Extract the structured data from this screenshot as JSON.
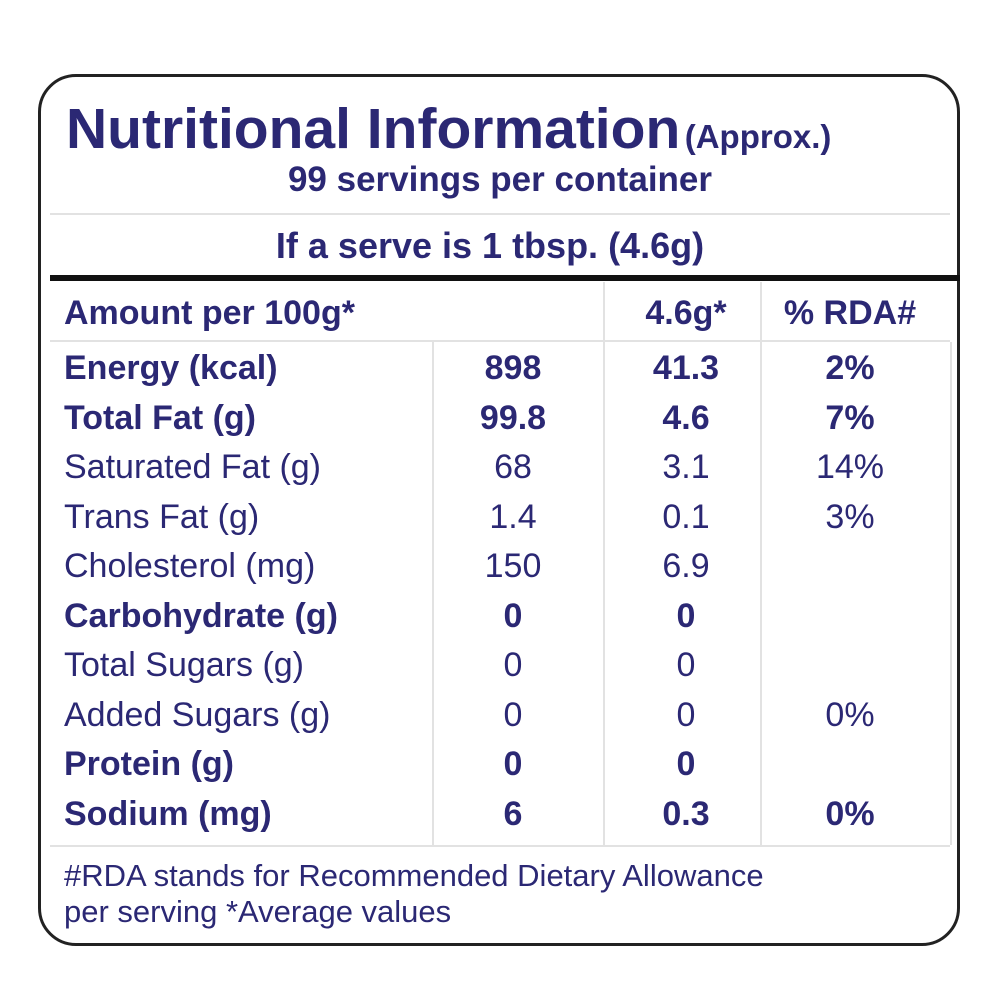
{
  "header": {
    "title": "Nutritional Information",
    "title_note": "(Approx.)",
    "servings": "99 servings per container",
    "serve_size": "If a serve is 1 tbsp. (4.6g)"
  },
  "table": {
    "columns": [
      "Amount per 100g*",
      "4.6g*",
      "% RDA#"
    ],
    "rows": [
      {
        "name": "Energy (kcal)",
        "per_100g": "898",
        "per_serve": "41.3",
        "rda": "2%",
        "bold": true
      },
      {
        "name": "Total Fat (g)",
        "per_100g": "99.8",
        "per_serve": "4.6",
        "rda": "7%",
        "bold": true
      },
      {
        "name": "Saturated Fat (g)",
        "per_100g": "68",
        "per_serve": "3.1",
        "rda": "14%",
        "bold": false
      },
      {
        "name": "Trans Fat (g)",
        "per_100g": "1.4",
        "per_serve": "0.1",
        "rda": "3%",
        "bold": false
      },
      {
        "name": "Cholesterol (mg)",
        "per_100g": "150",
        "per_serve": "6.9",
        "rda": null,
        "bold": false
      },
      {
        "name": "Carbohydrate (g)",
        "per_100g": "0",
        "per_serve": "0",
        "rda": null,
        "bold": true
      },
      {
        "name": "Total Sugars (g)",
        "per_100g": "0",
        "per_serve": "0",
        "rda": null,
        "bold": false
      },
      {
        "name": "Added Sugars (g)",
        "per_100g": "0",
        "per_serve": "0",
        "rda": "0%",
        "bold": false
      },
      {
        "name": "Protein (g)",
        "per_100g": "0",
        "per_serve": "0",
        "rda": null,
        "bold": true
      },
      {
        "name": "Sodium (mg)",
        "per_100g": "6",
        "per_serve": "0.3",
        "rda": "0%",
        "bold": true
      }
    ]
  },
  "footer": {
    "line1": "#RDA stands for Recommended Dietary Allowance",
    "line2": "per serving *Average values"
  }
}
